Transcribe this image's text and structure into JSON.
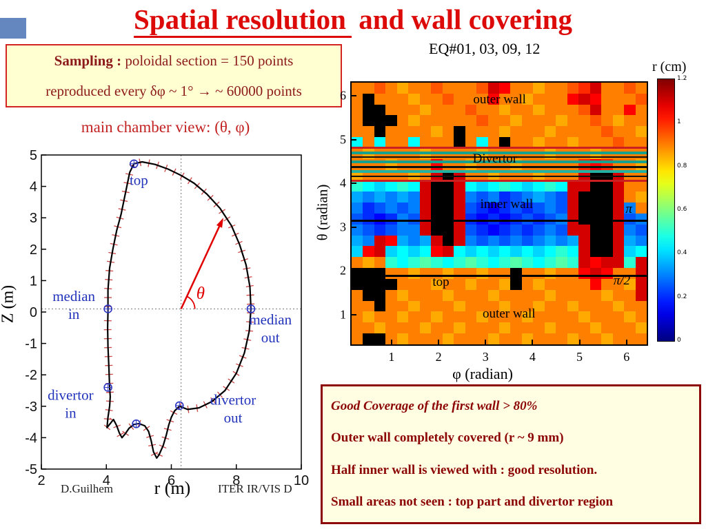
{
  "slide": {
    "title_underlined": "Spatial resolution",
    "title_rest": " and wall covering",
    "eq_label": "EQ#01, 03, 09, 12",
    "footer_author": "D.Guilhem",
    "footer_note": "ITER IR/VIS D",
    "accent_red": "#dd0a0a",
    "maroon": "#8c0606"
  },
  "sampling_box": {
    "label": "Sampling :",
    "line1": " poloidal section = 150 points",
    "line2": "reproduced every δφ ~ 1° → ~ 60000 points"
  },
  "conclusions": {
    "lines": [
      "Good Coverage of the first wall > 80%",
      "Outer wall completely covered (r ~ 9 mm)",
      "Half inner wall is viewed with : good resolution.",
      "Small areas not seen : top part and divertor region"
    ]
  },
  "chart_data": [
    {
      "type": "line",
      "title": "main chamber view: (θ, φ)",
      "xlabel": "r (m)",
      "ylabel": "Z (m)",
      "xlim": [
        2,
        10
      ],
      "ylim": [
        -5,
        5
      ],
      "xticks": [
        2,
        4,
        6,
        8,
        10
      ],
      "yticks": [
        -5,
        -4,
        -3,
        -2,
        -1,
        0,
        1,
        2,
        3,
        4,
        5
      ],
      "series": [
        {
          "name": "first wall contour (poloidal section, 150 points)",
          "r": [
            4.05,
            4.05,
            4.1,
            4.2,
            4.32,
            4.45,
            4.55,
            4.65,
            4.72,
            4.85,
            5.1,
            5.5,
            5.9,
            6.3,
            6.7,
            7.1,
            7.5,
            7.85,
            8.1,
            8.3,
            8.42,
            8.45,
            8.4,
            8.25,
            8.0,
            7.65,
            7.25,
            6.85,
            6.5,
            6.25,
            6.1,
            6.0,
            5.92,
            5.85,
            5.75,
            5.62,
            5.55,
            5.45,
            5.38,
            5.3,
            5.18,
            5.0,
            4.85,
            4.7,
            4.58,
            4.48,
            4.4,
            4.32,
            4.22,
            4.12,
            4.02,
            4.05,
            4.1,
            4.12,
            4.1,
            4.08,
            4.05,
            4.04,
            4.05
          ],
          "z": [
            0,
            0.7,
            1.4,
            2.0,
            2.6,
            3.1,
            3.6,
            4.1,
            4.45,
            4.72,
            4.78,
            4.7,
            4.55,
            4.35,
            4.1,
            3.75,
            3.3,
            2.75,
            2.15,
            1.5,
            0.8,
            0.1,
            -0.6,
            -1.3,
            -1.95,
            -2.5,
            -2.85,
            -3.05,
            -3.1,
            -3.0,
            -3.15,
            -3.35,
            -3.6,
            -3.9,
            -4.25,
            -4.55,
            -4.65,
            -4.45,
            -4.1,
            -3.8,
            -3.62,
            -3.55,
            -3.58,
            -3.7,
            -3.88,
            -4.0,
            -3.85,
            -3.62,
            -3.42,
            -3.55,
            -3.68,
            -3.35,
            -3.0,
            -2.7,
            -2.4,
            -1.8,
            -1.1,
            -0.5,
            0
          ]
        }
      ],
      "markers": [
        {
          "name": "top",
          "r": 4.85,
          "z": 4.72
        },
        {
          "name": "median in",
          "r": 4.05,
          "z": 0.1
        },
        {
          "name": "median out",
          "r": 8.45,
          "z": 0.1
        },
        {
          "name": "divertor in",
          "r": 4.05,
          "z": -2.4
        },
        {
          "name": "divertor out",
          "r": 6.25,
          "z": -2.98
        },
        {
          "name": "divertor bottom",
          "r": 4.92,
          "z": -3.56
        }
      ],
      "labels": [
        {
          "lines": [
            "top"
          ],
          "r": 5.0,
          "z": 4.05
        },
        {
          "lines": [
            "median",
            "in"
          ],
          "r": 3.0,
          "z": 0.35
        },
        {
          "lines": [
            "median",
            "out"
          ],
          "r": 9.05,
          "z": -0.4
        },
        {
          "lines": [
            "divertor",
            "in"
          ],
          "r": 2.9,
          "z": -2.8
        },
        {
          "lines": [
            "divertor",
            "out"
          ],
          "r": 7.9,
          "z": -2.95
        }
      ],
      "theta_arrow": {
        "from_r": 6.3,
        "from_z": 0.1,
        "to_r": 7.6,
        "to_z": 3.0,
        "label": "θ",
        "label_r": 6.9,
        "label_z": 0.42
      },
      "guide_h_z": 0.1,
      "guide_v_r": 6.3
    },
    {
      "type": "heatmap",
      "xlabel": "φ (radian)",
      "ylabel": "θ (radian)",
      "xlim": [
        0.15,
        6.43
      ],
      "ylim": [
        0.32,
        6.3
      ],
      "xticks": [
        1,
        2,
        3,
        4,
        5,
        6
      ],
      "yticks": [
        1,
        2,
        3,
        4,
        5,
        6
      ],
      "colorbar": {
        "title": "r (cm)",
        "min": 0,
        "max": 1.2,
        "colormap": "jet",
        "ticks": [
          "1.2",
          "1",
          "0.8",
          "0.6",
          "0.4",
          "0.2",
          "0"
        ],
        "tick_values": [
          1.2,
          1,
          0.8,
          0.6,
          0.4,
          0.2,
          0
        ]
      },
      "value_unit": "cm",
      "not_viewed_value": null,
      "values": [
        [
          0.9,
          0.9,
          0.95,
          0.9,
          0.85,
          0.9,
          0.9,
          0.95,
          0.9,
          0.9,
          0.9,
          0.95,
          1.1,
          1.05,
          0.9,
          0.9,
          0.85,
          0.9,
          0.9,
          0.95,
          1.0,
          1.1,
          0.9,
          0.9,
          0.95,
          0.9
        ],
        [
          0.9,
          null,
          0.9,
          0.9,
          0.9,
          0.85,
          0.9,
          0.9,
          0.95,
          0.9,
          0.9,
          0.9,
          1.05,
          0.9,
          0.9,
          0.85,
          0.9,
          0.9,
          0.9,
          1.05,
          1.1,
          1.05,
          0.9,
          0.9,
          0.9,
          0.95
        ],
        [
          0.9,
          null,
          null,
          0.9,
          0.9,
          0.9,
          0.85,
          0.9,
          0.9,
          0.9,
          0.95,
          0.9,
          0.9,
          0.85,
          0.9,
          0.9,
          0.85,
          0.9,
          0.9,
          0.9,
          0.95,
          1.1,
          0.9,
          0.9,
          1.05,
          0.9
        ],
        [
          0.9,
          null,
          null,
          null,
          0.9,
          0.85,
          0.9,
          0.9,
          0.9,
          0.9,
          0.9,
          0.95,
          0.9,
          0.9,
          0.85,
          0.9,
          0.9,
          0.9,
          0.85,
          0.9,
          0.9,
          0.95,
          0.9,
          0.85,
          0.9,
          0.9
        ],
        [
          0.9,
          0.9,
          null,
          0.9,
          0.9,
          0.9,
          0.9,
          0.85,
          0.9,
          null,
          0.9,
          0.9,
          0.9,
          0.85,
          0.9,
          0.9,
          0.9,
          0.85,
          0.9,
          0.9,
          0.9,
          0.9,
          0.95,
          0.9,
          0.9,
          0.85
        ],
        [
          0.45,
          0.9,
          0.45,
          0.9,
          0.9,
          0.45,
          0.9,
          0.9,
          0.9,
          null,
          0.9,
          0.45,
          0.9,
          null,
          0.9,
          0.9,
          0.85,
          0.9,
          0.9,
          0.85,
          0.9,
          0.9,
          0.9,
          0.95,
          0.9,
          0.9
        ],
        [
          0.9,
          0.85,
          0.9,
          0.9,
          0.9,
          0.9,
          0.85,
          0.9,
          0.9,
          0.9,
          0.9,
          0.85,
          0.9,
          0.9,
          0.9,
          0.9,
          0.9,
          0.85,
          0.9,
          0.9,
          0.9,
          0.85,
          0.9,
          0.9,
          0.9,
          0.9
        ],
        [
          0.9,
          0.9,
          0.9,
          0.85,
          0.9,
          0.9,
          0.9,
          1.05,
          0.9,
          0.9,
          0.85,
          0.9,
          0.9,
          0.9,
          0.85,
          0.9,
          0.9,
          0.9,
          0.9,
          0.9,
          1.0,
          1.05,
          1.0,
          0.9,
          0.9,
          0.85
        ],
        [
          0.85,
          0.9,
          0.9,
          0.9,
          0.9,
          0.85,
          0.9,
          1.1,
          null,
          1.1,
          0.9,
          0.9,
          0.85,
          0.9,
          0.9,
          0.9,
          0.85,
          0.9,
          0.9,
          0.9,
          1.1,
          null,
          null,
          1.1,
          0.9,
          0.9
        ],
        [
          0.5,
          0.45,
          0.4,
          0.45,
          0.5,
          0.45,
          1.1,
          null,
          null,
          1.1,
          0.45,
          0.4,
          0.45,
          0.5,
          0.45,
          0.4,
          0.45,
          0.5,
          0.45,
          1.1,
          1.1,
          null,
          null,
          1.1,
          0.9,
          0.9
        ],
        [
          0.35,
          0.3,
          0.35,
          0.3,
          0.35,
          0.3,
          1.1,
          null,
          null,
          1.1,
          0.3,
          0.25,
          0.3,
          0.2,
          0.25,
          0.3,
          0.35,
          0.3,
          0.25,
          1.1,
          null,
          null,
          null,
          1.1,
          0.9,
          0.85
        ],
        [
          0.3,
          0.2,
          0.25,
          0.3,
          0.25,
          0.3,
          1.1,
          null,
          null,
          1.1,
          0.25,
          0.2,
          0.15,
          0.2,
          0.25,
          0.2,
          0.25,
          0.3,
          0.25,
          1.1,
          null,
          null,
          null,
          1.1,
          0.3,
          0.9
        ],
        [
          0.25,
          0.2,
          0.15,
          0.2,
          0.3,
          0.25,
          1.1,
          null,
          null,
          1.1,
          0.2,
          0.15,
          0.2,
          0.15,
          0.2,
          0.25,
          0.2,
          0.25,
          0.3,
          1.1,
          null,
          null,
          null,
          1.1,
          0.25,
          0.3
        ],
        [
          0.3,
          0.25,
          0.2,
          0.25,
          0.3,
          0.3,
          1.1,
          null,
          null,
          1.1,
          0.25,
          0.2,
          0.15,
          0.2,
          0.25,
          0.2,
          0.25,
          0.3,
          0.25,
          1.1,
          1.1,
          null,
          null,
          1.1,
          0.3,
          0.25
        ],
        [
          0.35,
          0.3,
          1.1,
          1.05,
          0.35,
          0.3,
          0.35,
          1.1,
          null,
          1.1,
          0.3,
          0.25,
          0.3,
          0.25,
          0.3,
          0.25,
          0.3,
          0.35,
          0.3,
          0.35,
          1.1,
          null,
          null,
          1.1,
          0.35,
          0.3
        ],
        [
          0.4,
          1.05,
          1.1,
          0.4,
          0.45,
          0.4,
          0.45,
          1.05,
          1.1,
          0.45,
          0.4,
          0.45,
          0.4,
          0.45,
          0.4,
          0.45,
          0.4,
          0.45,
          0.5,
          0.45,
          1.1,
          null,
          null,
          1.1,
          0.4,
          0.45
        ],
        [
          0.9,
          0.85,
          0.9,
          0.5,
          0.45,
          0.5,
          0.55,
          0.5,
          0.45,
          0.5,
          0.55,
          0.5,
          0.45,
          0.5,
          0.55,
          0.5,
          0.45,
          0.5,
          0.55,
          0.5,
          1.1,
          1.05,
          1.1,
          1.1,
          0.5,
          1.1
        ],
        [
          null,
          null,
          null,
          0.9,
          0.9,
          0.85,
          0.9,
          0.9,
          0.85,
          0.9,
          0.9,
          0.85,
          0.9,
          0.9,
          null,
          0.9,
          0.9,
          0.85,
          0.9,
          0.9,
          1.05,
          1.1,
          1.05,
          0.9,
          0.9,
          1.1
        ],
        [
          null,
          null,
          null,
          null,
          0.9,
          0.9,
          0.9,
          0.85,
          0.9,
          0.9,
          0.85,
          0.9,
          0.9,
          0.85,
          null,
          0.9,
          0.85,
          0.9,
          0.9,
          0.9,
          0.9,
          1.05,
          0.9,
          0.9,
          0.85,
          1.1
        ],
        [
          0.9,
          null,
          null,
          0.9,
          0.85,
          0.9,
          0.9,
          0.9,
          0.85,
          0.9,
          0.9,
          0.9,
          0.85,
          0.9,
          0.9,
          0.9,
          0.9,
          0.85,
          0.9,
          0.9,
          0.9,
          0.9,
          0.85,
          0.9,
          0.9,
          1.1
        ],
        [
          0.9,
          0.9,
          null,
          0.9,
          0.9,
          0.85,
          0.9,
          0.9,
          0.9,
          0.85,
          0.9,
          0.9,
          0.9,
          0.85,
          0.9,
          0.9,
          0.85,
          0.9,
          0.9,
          0.85,
          0.9,
          0.9,
          0.9,
          0.85,
          0.9,
          0.9
        ],
        [
          0.9,
          0.85,
          0.9,
          0.9,
          0.85,
          0.9,
          0.9,
          0.85,
          0.9,
          0.9,
          0.9,
          0.85,
          0.9,
          0.9,
          0.9,
          0.85,
          0.9,
          0.9,
          0.9,
          0.9,
          0.85,
          0.9,
          0.9,
          0.9,
          0.85,
          0.9
        ],
        [
          0.9,
          0.9,
          0.85,
          0.9,
          0.9,
          0.9,
          0.85,
          0.9,
          0.9,
          0.85,
          0.9,
          0.9,
          0.9,
          0.85,
          0.9,
          0.9,
          0.9,
          0.85,
          0.9,
          0.9,
          0.9,
          0.85,
          0.9,
          0.9,
          0.9,
          0.85
        ],
        [
          0.9,
          null,
          null,
          0.9,
          0.85,
          0.9,
          0.9,
          0.9,
          0.85,
          0.9,
          0.9,
          0.9,
          0.85,
          0.9,
          0.9,
          0.85,
          0.9,
          0.9,
          0.9,
          0.85,
          0.9,
          0.9,
          0.85,
          0.9,
          0.9,
          0.9
        ]
      ],
      "overlay_lines": [
        {
          "theta": 4.82,
          "h": 3,
          "color": "#cc2020"
        },
        {
          "theta": 4.7,
          "h": 4,
          "color": "#17a18f"
        },
        {
          "theta": 4.6,
          "h": 2,
          "color": "#101010"
        },
        {
          "theta": 4.49,
          "h": 4,
          "color": "#17a18f"
        },
        {
          "theta": 4.38,
          "h": 3,
          "color": "#101010"
        },
        {
          "theta": 4.27,
          "h": 4,
          "color": "#22b2a2"
        },
        {
          "theta": 4.16,
          "h": 2,
          "color": "#101010"
        },
        {
          "theta": 4.05,
          "h": 3,
          "color": "#cc2020"
        },
        {
          "theta": 3.14,
          "h": 3,
          "color": "#000000"
        },
        {
          "theta": 1.88,
          "h": 3,
          "color": "#000000"
        }
      ],
      "region_labels": [
        {
          "text": "outer wall",
          "phi": 3.3,
          "theta": 5.9
        },
        {
          "text": "Divertor",
          "phi": 3.2,
          "theta": 4.56
        },
        {
          "text": "inner wall",
          "phi": 3.45,
          "theta": 3.52
        },
        {
          "text": "π",
          "phi": 6.05,
          "theta": 3.4,
          "italic": true
        },
        {
          "text": "top",
          "phi": 2.05,
          "theta": 1.74
        },
        {
          "text": "π/2",
          "phi": 5.9,
          "theta": 1.77,
          "italic": true
        },
        {
          "text": "outer wall",
          "phi": 3.5,
          "theta": 1.02
        }
      ]
    }
  ]
}
